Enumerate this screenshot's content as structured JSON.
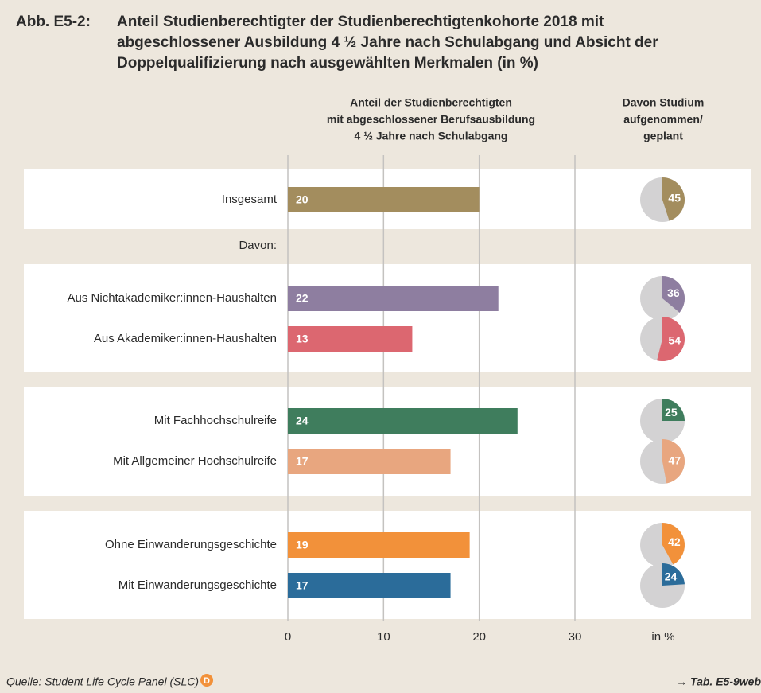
{
  "chart_data": {
    "type": "bar",
    "orientation": "horizontal",
    "title_label": "Abb. E5-2:",
    "title": [
      "Anteil Studienberechtigter der Studienberechtigtenkohorte 2018 mit",
      "abgeschlossener Ausbildung 4 ½ Jahre nach Schulabgang und Absicht der",
      "Doppelqualifizierung nach ausgewählten Merkmalen (in %)"
    ],
    "bar_header": [
      "Anteil der Studienberechtigten",
      "mit abgeschlossener Berufsausbildung",
      "4 ½ Jahre nach Schulabgang"
    ],
    "pie_header": [
      "Davon Studium",
      "aufgenommen/",
      "geplant"
    ],
    "categories": [
      "Insgesamt",
      "Davon:",
      "Aus Nichtakademiker:innen-Haushalten",
      "Aus Akademiker:innen-Haushalten",
      "Mit Fachhochschulreife",
      "Mit Allgemeiner Hochschulreife",
      "Ohne Einwanderungsgeschichte",
      "Mit Einwanderungsgeschichte"
    ],
    "values": [
      20,
      null,
      22,
      13,
      24,
      17,
      19,
      17
    ],
    "pie_values": [
      45,
      null,
      36,
      54,
      25,
      47,
      42,
      24
    ],
    "colors": [
      "#a38d5e",
      null,
      "#8e7ea0",
      "#dc6770",
      "#3f7d5d",
      "#e8a67f",
      "#f2913a",
      "#2b6c9a"
    ],
    "xlim": [
      0,
      30
    ],
    "xticks": [
      0,
      10,
      20,
      30
    ],
    "grid": true,
    "unit_label": "in %",
    "source": "Quelle: Student Life Cycle Panel (SLC)",
    "source_badge": "D",
    "reference": "→ Tab. E5-9web"
  }
}
